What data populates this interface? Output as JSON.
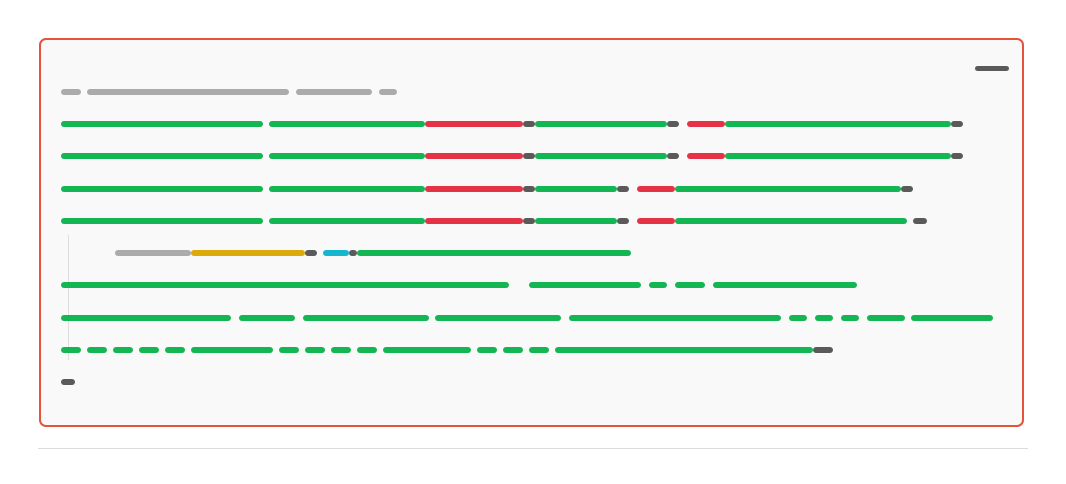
{
  "panel": {
    "border_color": "#e5533a",
    "background": "#f9f9f9",
    "control_icon": "minimize-icon"
  },
  "colors": {
    "gray": "#ababab",
    "green": "#14b553",
    "red": "#e43347",
    "dark": "#5a5a5a",
    "yellow": "#ddaa0c",
    "cyan": "#17b6cf"
  },
  "code": {
    "lines": [
      {
        "segments": [
          {
            "c": "gray",
            "a": 20,
            "b": 40
          },
          {
            "c": "gray",
            "a": 46,
            "b": 248
          },
          {
            "c": "gray",
            "a": 255,
            "b": 331
          },
          {
            "c": "gray",
            "a": 338,
            "b": 356
          }
        ]
      },
      {
        "segments": [
          {
            "c": "green",
            "a": 20,
            "b": 222
          },
          {
            "c": "green",
            "a": 228,
            "b": 384
          },
          {
            "c": "red",
            "a": 384,
            "b": 482
          },
          {
            "c": "dark",
            "a": 482,
            "b": 494
          },
          {
            "c": "green",
            "a": 494,
            "b": 626
          },
          {
            "c": "dark",
            "a": 626,
            "b": 638
          },
          {
            "c": "red",
            "a": 646,
            "b": 684
          },
          {
            "c": "green",
            "a": 684,
            "b": 910
          },
          {
            "c": "dark",
            "a": 910,
            "b": 922
          }
        ]
      },
      {
        "segments": [
          {
            "c": "green",
            "a": 20,
            "b": 222
          },
          {
            "c": "green",
            "a": 228,
            "b": 384
          },
          {
            "c": "red",
            "a": 384,
            "b": 482
          },
          {
            "c": "dark",
            "a": 482,
            "b": 494
          },
          {
            "c": "green",
            "a": 494,
            "b": 626
          },
          {
            "c": "dark",
            "a": 626,
            "b": 638
          },
          {
            "c": "red",
            "a": 646,
            "b": 684
          },
          {
            "c": "green",
            "a": 684,
            "b": 910
          },
          {
            "c": "dark",
            "a": 910,
            "b": 922
          }
        ]
      },
      {
        "segments": [
          {
            "c": "green",
            "a": 20,
            "b": 222
          },
          {
            "c": "green",
            "a": 228,
            "b": 384
          },
          {
            "c": "red",
            "a": 384,
            "b": 482
          },
          {
            "c": "dark",
            "a": 482,
            "b": 494
          },
          {
            "c": "green",
            "a": 494,
            "b": 576
          },
          {
            "c": "dark",
            "a": 576,
            "b": 588
          },
          {
            "c": "red",
            "a": 596,
            "b": 634
          },
          {
            "c": "green",
            "a": 634,
            "b": 860
          },
          {
            "c": "dark",
            "a": 860,
            "b": 872
          }
        ]
      },
      {
        "segments": [
          {
            "c": "green",
            "a": 20,
            "b": 222
          },
          {
            "c": "green",
            "a": 228,
            "b": 384
          },
          {
            "c": "red",
            "a": 384,
            "b": 482
          },
          {
            "c": "dark",
            "a": 482,
            "b": 494
          },
          {
            "c": "green",
            "a": 494,
            "b": 576
          },
          {
            "c": "dark",
            "a": 576,
            "b": 588
          },
          {
            "c": "red",
            "a": 596,
            "b": 634
          },
          {
            "c": "green",
            "a": 634,
            "b": 866
          },
          {
            "c": "dark",
            "a": 872,
            "b": 886
          }
        ]
      },
      {
        "segments": [
          {
            "c": "gray",
            "a": 74,
            "b": 150
          },
          {
            "c": "yellow",
            "a": 150,
            "b": 264
          },
          {
            "c": "dark",
            "a": 264,
            "b": 276
          },
          {
            "c": "cyan",
            "a": 282,
            "b": 308
          },
          {
            "c": "dark",
            "a": 308,
            "b": 316
          },
          {
            "c": "green",
            "a": 316,
            "b": 590
          }
        ]
      },
      {
        "segments": [
          {
            "c": "green",
            "a": 20,
            "b": 468
          },
          {
            "c": "green",
            "a": 488,
            "b": 600
          },
          {
            "c": "green",
            "a": 608,
            "b": 626
          },
          {
            "c": "green",
            "a": 634,
            "b": 664
          },
          {
            "c": "green",
            "a": 672,
            "b": 816
          }
        ]
      },
      {
        "segments": [
          {
            "c": "green",
            "a": 20,
            "b": 190
          },
          {
            "c": "green",
            "a": 198,
            "b": 254
          },
          {
            "c": "green",
            "a": 262,
            "b": 388
          },
          {
            "c": "green",
            "a": 394,
            "b": 520
          },
          {
            "c": "green",
            "a": 528,
            "b": 740
          },
          {
            "c": "green",
            "a": 748,
            "b": 766
          },
          {
            "c": "green",
            "a": 774,
            "b": 792
          },
          {
            "c": "green",
            "a": 800,
            "b": 818
          },
          {
            "c": "green",
            "a": 826,
            "b": 864
          },
          {
            "c": "green",
            "a": 870,
            "b": 952
          }
        ]
      },
      {
        "segments": [
          {
            "c": "green",
            "a": 20,
            "b": 40
          },
          {
            "c": "green",
            "a": 46,
            "b": 66
          },
          {
            "c": "green",
            "a": 72,
            "b": 92
          },
          {
            "c": "green",
            "a": 98,
            "b": 118
          },
          {
            "c": "green",
            "a": 124,
            "b": 144
          },
          {
            "c": "green",
            "a": 150,
            "b": 232
          },
          {
            "c": "green",
            "a": 238,
            "b": 258
          },
          {
            "c": "green",
            "a": 264,
            "b": 284
          },
          {
            "c": "green",
            "a": 290,
            "b": 310
          },
          {
            "c": "green",
            "a": 316,
            "b": 336
          },
          {
            "c": "green",
            "a": 342,
            "b": 430
          },
          {
            "c": "green",
            "a": 436,
            "b": 456
          },
          {
            "c": "green",
            "a": 462,
            "b": 482
          },
          {
            "c": "green",
            "a": 488,
            "b": 508
          },
          {
            "c": "green",
            "a": 514,
            "b": 772
          },
          {
            "c": "dark",
            "a": 772,
            "b": 792
          }
        ]
      },
      {
        "segments": [
          {
            "c": "dark",
            "a": 20,
            "b": 34
          }
        ]
      }
    ]
  }
}
